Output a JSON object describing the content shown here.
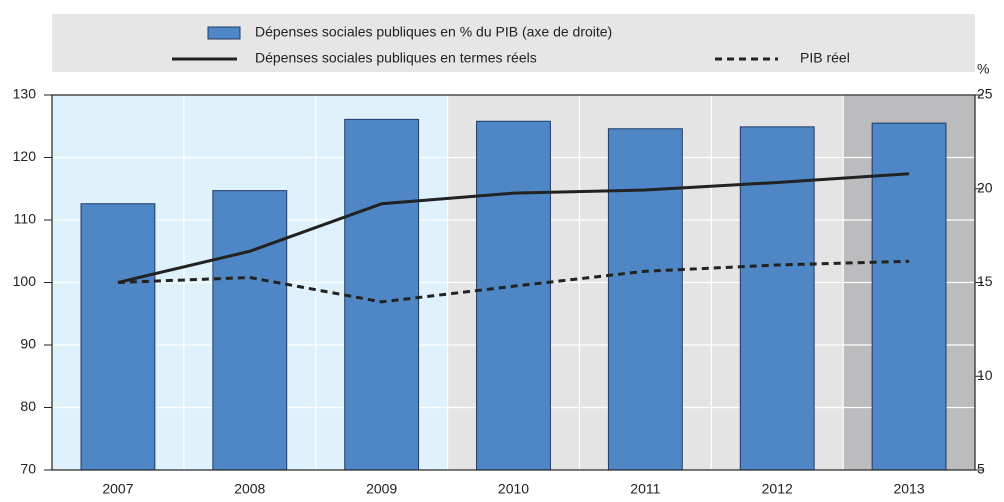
{
  "chart_data": {
    "type": "bar-line",
    "categories": [
      "2007",
      "2008",
      "2009",
      "2010",
      "2011",
      "2012",
      "2013"
    ],
    "series": [
      {
        "name": "Dépenses sociales publiques en % du PIB (axe de droite)",
        "type": "bar",
        "axis": "y2",
        "color": "#4f86c6",
        "values": [
          19.2,
          19.9,
          23.7,
          23.6,
          23.2,
          23.3,
          23.5
        ]
      },
      {
        "name": "Dépenses sociales publiques en termes réels",
        "type": "line",
        "color": "#222222",
        "dash": false,
        "values": [
          100,
          105,
          112.6,
          114.3,
          114.8,
          116,
          117.4
        ]
      },
      {
        "name": "PIB réel",
        "type": "line",
        "color": "#222222",
        "dash": true,
        "values": [
          100,
          100.8,
          96.9,
          99.4,
          101.8,
          102.8,
          103.4
        ]
      }
    ],
    "ylim": [
      70,
      130
    ],
    "yticks": [
      70,
      80,
      90,
      100,
      110,
      120,
      130
    ],
    "y2lim": [
      5,
      25
    ],
    "y2ticks": [
      5,
      10,
      15,
      20,
      25
    ],
    "y2_label": "%",
    "legend": "top",
    "grid": true
  }
}
